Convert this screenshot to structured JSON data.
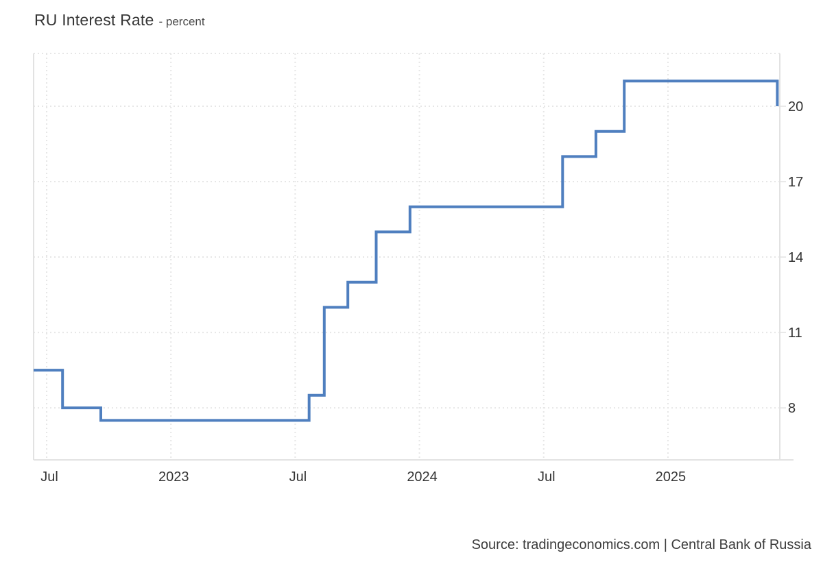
{
  "header": {
    "title": "RU Interest Rate",
    "subtitle": "- percent"
  },
  "footer": {
    "source": "Source: tradingeconomics.com | Central Bank of Russia"
  },
  "chart_data": {
    "type": "line",
    "step": true,
    "title": "RU Interest Rate",
    "subtitle": "percent",
    "xlabel": "",
    "ylabel": "percent",
    "legend": "none",
    "grid": "dotted",
    "x_unit": "decimal_year",
    "xlim": [
      2022.4475,
      2025.45
    ],
    "ylim": [
      5.93,
      22.1
    ],
    "y_ticks": [
      {
        "value": 8,
        "label": "8"
      },
      {
        "value": 11,
        "label": "11"
      },
      {
        "value": 14,
        "label": "14"
      },
      {
        "value": 17,
        "label": "17"
      },
      {
        "value": 20,
        "label": "20"
      }
    ],
    "x_ticks": [
      {
        "value": 2022.5,
        "label": "Jul"
      },
      {
        "value": 2023.0,
        "label": "2023"
      },
      {
        "value": 2023.5,
        "label": "Jul"
      },
      {
        "value": 2024.0,
        "label": "2024"
      },
      {
        "value": 2024.5,
        "label": "Jul"
      },
      {
        "value": 2025.0,
        "label": "2025"
      }
    ],
    "series": [
      {
        "name": "RU Interest Rate",
        "points": [
          {
            "t": 2022.4475,
            "value": 9.5
          },
          {
            "t": 2022.564,
            "value": 8
          },
          {
            "t": 2022.718,
            "value": 7.5
          },
          {
            "t": 2023.556,
            "value": 8.5
          },
          {
            "t": 2023.617,
            "value": 12
          },
          {
            "t": 2023.712,
            "value": 13
          },
          {
            "t": 2023.826,
            "value": 15
          },
          {
            "t": 2023.962,
            "value": 16
          },
          {
            "t": 2024.576,
            "value": 18
          },
          {
            "t": 2024.71,
            "value": 19
          },
          {
            "t": 2024.824,
            "value": 21
          },
          {
            "t": 2025.44,
            "value": 20
          }
        ]
      }
    ],
    "colors": {
      "line": "#4f7fbf",
      "grid": "#e6e6e6",
      "border": "#e2e2e2",
      "tick_text": "#333333"
    }
  }
}
